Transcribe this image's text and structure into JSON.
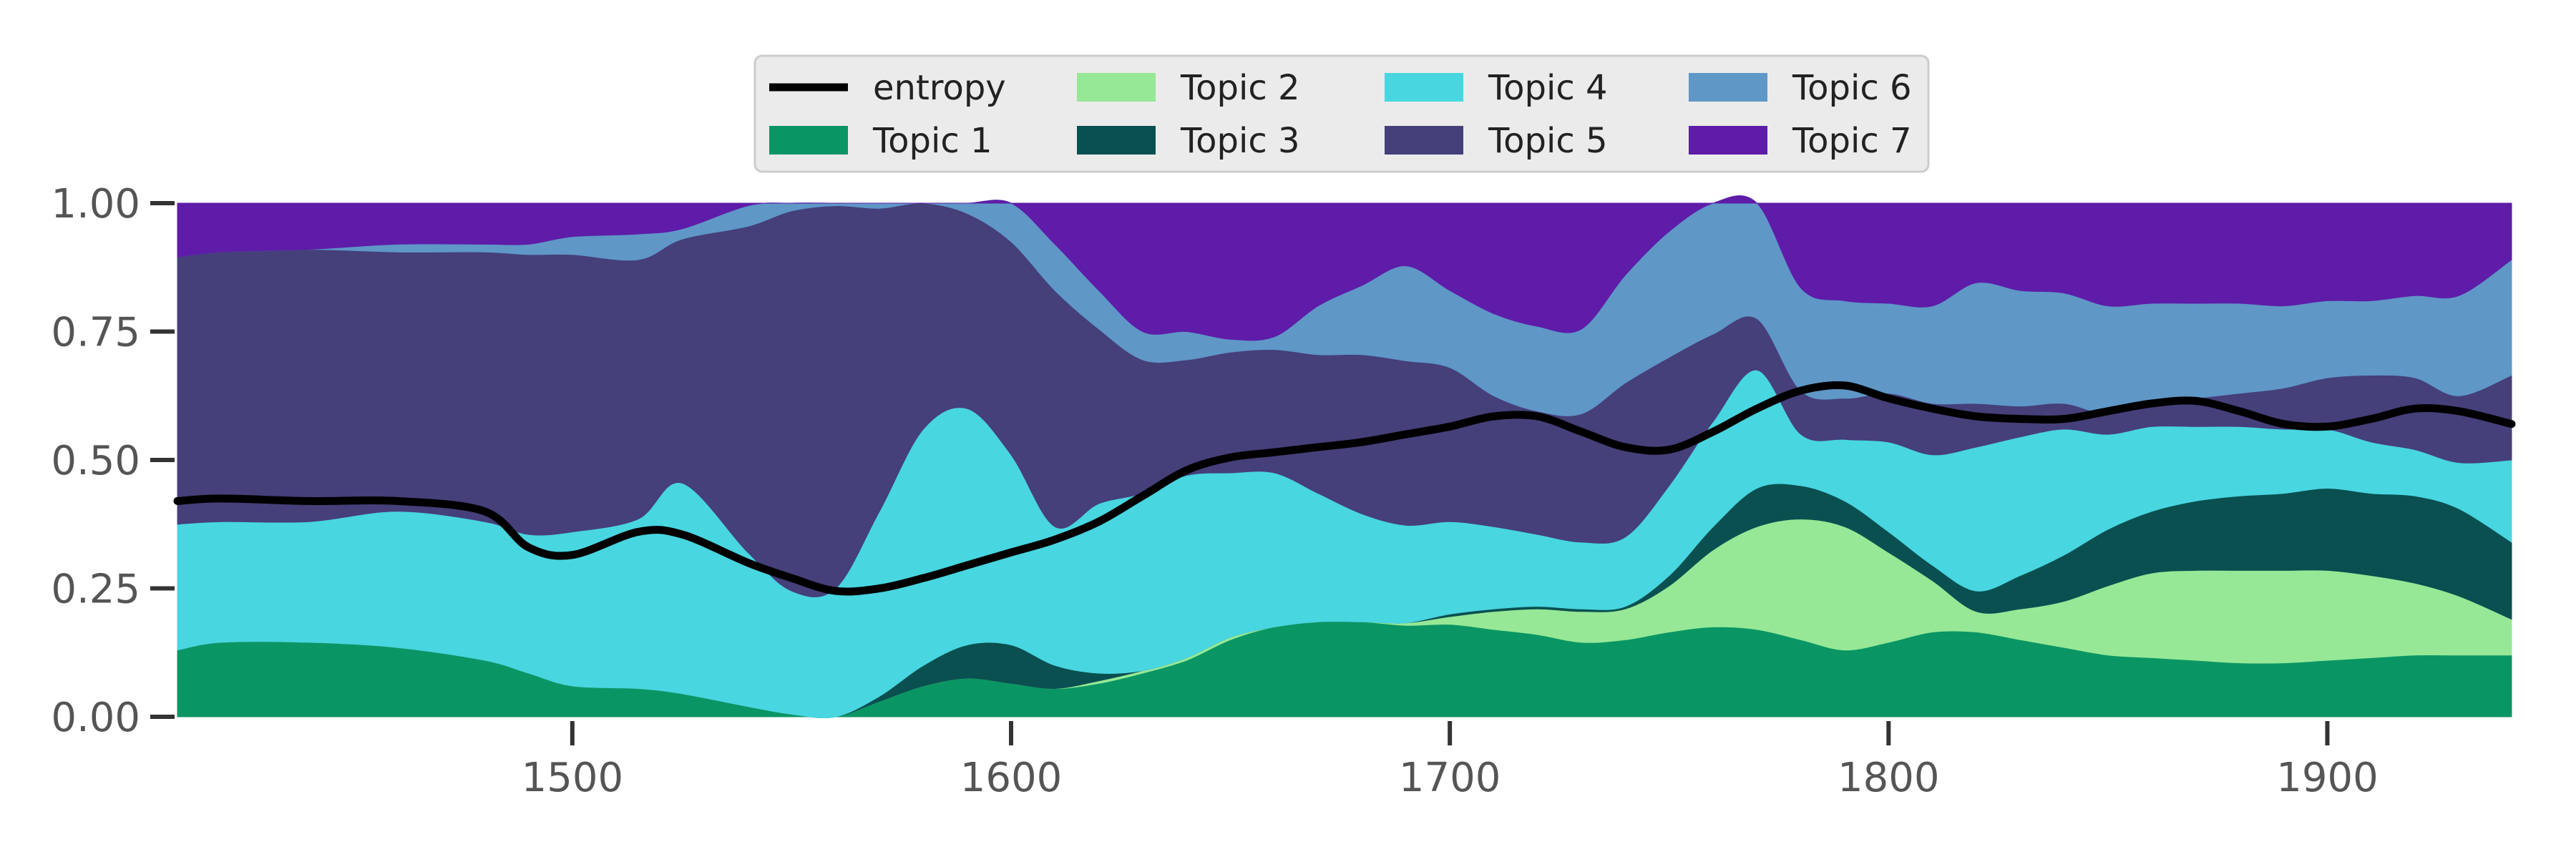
{
  "chart_data": {
    "type": "area",
    "stacked": true,
    "title": "",
    "xlabel": "",
    "ylabel": "",
    "xlim": [
      1410,
      1942
    ],
    "ylim": [
      0,
      1
    ],
    "grid": false,
    "legend_placement": "top-center",
    "x_ticks": [
      "1500",
      "1600",
      "1700",
      "1800",
      "1900"
    ],
    "y_ticks": [
      "0.00",
      "0.25",
      "0.50",
      "0.75",
      "1.00"
    ],
    "x": [
      1410,
      1420,
      1440,
      1460,
      1480,
      1490,
      1500,
      1515,
      1525,
      1540,
      1550,
      1560,
      1570,
      1580,
      1590,
      1600,
      1610,
      1620,
      1630,
      1640,
      1650,
      1660,
      1670,
      1680,
      1690,
      1700,
      1710,
      1720,
      1730,
      1740,
      1750,
      1760,
      1770,
      1780,
      1790,
      1800,
      1810,
      1820,
      1830,
      1840,
      1850,
      1860,
      1870,
      1880,
      1890,
      1900,
      1910,
      1920,
      1930,
      1942
    ],
    "series": [
      {
        "name": "Topic 1",
        "color": "#0a9664",
        "values": [
          0.13,
          0.145,
          0.145,
          0.135,
          0.11,
          0.085,
          0.06,
          0.055,
          0.045,
          0.02,
          0.005,
          0.0,
          0.03,
          0.06,
          0.075,
          0.065,
          0.055,
          0.065,
          0.085,
          0.11,
          0.15,
          0.175,
          0.185,
          0.185,
          0.178,
          0.18,
          0.17,
          0.16,
          0.145,
          0.15,
          0.165,
          0.175,
          0.17,
          0.15,
          0.13,
          0.145,
          0.165,
          0.165,
          0.15,
          0.135,
          0.12,
          0.115,
          0.11,
          0.105,
          0.105,
          0.11,
          0.115,
          0.12,
          0.12,
          0.12
        ]
      },
      {
        "name": "Topic 2",
        "color": "#96e896",
        "values": [
          0.0,
          0.0,
          0.0,
          0.0,
          0.0,
          0.0,
          0.0,
          0.0,
          0.0,
          0.0,
          0.0,
          0.0,
          0.0,
          0.0,
          0.0,
          0.0,
          0.0,
          0.005,
          0.005,
          0.005,
          0.005,
          0.0,
          0.0,
          0.0,
          0.005,
          0.015,
          0.035,
          0.05,
          0.06,
          0.06,
          0.09,
          0.15,
          0.2,
          0.235,
          0.24,
          0.175,
          0.1,
          0.04,
          0.06,
          0.09,
          0.135,
          0.165,
          0.175,
          0.18,
          0.18,
          0.175,
          0.16,
          0.14,
          0.115,
          0.07
        ]
      },
      {
        "name": "Topic 3",
        "color": "#0a5050",
        "values": [
          0.0,
          0.0,
          0.0,
          0.0,
          0.0,
          0.0,
          0.0,
          0.0,
          0.0,
          0.0,
          0.0,
          0.0,
          0.01,
          0.04,
          0.065,
          0.075,
          0.045,
          0.015,
          0.0,
          0.0,
          0.0,
          0.0,
          0.0,
          0.0,
          0.0,
          0.005,
          0.005,
          0.005,
          0.005,
          0.005,
          0.02,
          0.045,
          0.075,
          0.065,
          0.05,
          0.04,
          0.03,
          0.04,
          0.065,
          0.09,
          0.11,
          0.12,
          0.135,
          0.145,
          0.15,
          0.16,
          0.16,
          0.17,
          0.17,
          0.15
        ]
      },
      {
        "name": "Topic 4",
        "color": "#48d6e0",
        "values": [
          0.245,
          0.235,
          0.235,
          0.265,
          0.27,
          0.27,
          0.3,
          0.33,
          0.41,
          0.3,
          0.24,
          0.25,
          0.36,
          0.46,
          0.46,
          0.37,
          0.27,
          0.33,
          0.345,
          0.355,
          0.32,
          0.3,
          0.25,
          0.21,
          0.19,
          0.18,
          0.16,
          0.14,
          0.13,
          0.135,
          0.175,
          0.205,
          0.23,
          0.1,
          0.12,
          0.175,
          0.215,
          0.28,
          0.27,
          0.245,
          0.185,
          0.165,
          0.145,
          0.135,
          0.125,
          0.115,
          0.1,
          0.09,
          0.09,
          0.16
        ]
      },
      {
        "name": "Topic 5",
        "color": "#453f7a",
        "values": [
          0.52,
          0.525,
          0.53,
          0.505,
          0.525,
          0.545,
          0.54,
          0.505,
          0.475,
          0.635,
          0.74,
          0.745,
          0.59,
          0.44,
          0.38,
          0.415,
          0.46,
          0.34,
          0.26,
          0.225,
          0.235,
          0.24,
          0.27,
          0.31,
          0.32,
          0.3,
          0.255,
          0.24,
          0.25,
          0.3,
          0.25,
          0.17,
          0.1,
          0.085,
          0.08,
          0.095,
          0.1,
          0.085,
          0.06,
          0.05,
          0.04,
          0.045,
          0.055,
          0.065,
          0.08,
          0.1,
          0.13,
          0.14,
          0.13,
          0.165
        ]
      },
      {
        "name": "Topic 6",
        "color": "#5f97c7",
        "values": [
          0.0,
          0.0,
          0.0,
          0.015,
          0.015,
          0.02,
          0.035,
          0.05,
          0.02,
          0.04,
          0.03,
          0.01,
          0.01,
          0.005,
          0.045,
          0.075,
          0.09,
          0.075,
          0.055,
          0.055,
          0.025,
          0.025,
          0.095,
          0.135,
          0.185,
          0.15,
          0.16,
          0.165,
          0.165,
          0.21,
          0.245,
          0.255,
          0.235,
          0.2,
          0.19,
          0.175,
          0.19,
          0.235,
          0.225,
          0.215,
          0.21,
          0.195,
          0.185,
          0.175,
          0.16,
          0.15,
          0.145,
          0.16,
          0.195,
          0.225
        ]
      },
      {
        "name": "Topic 7",
        "color": "#5e1ca8",
        "values": [
          0.105,
          0.095,
          0.09,
          0.08,
          0.08,
          0.08,
          0.065,
          0.06,
          0.05,
          0.005,
          0.005,
          0.005,
          0.0,
          0.0,
          0.0,
          0.0,
          0.08,
          0.17,
          0.245,
          0.255,
          0.265,
          0.26,
          0.2,
          0.16,
          0.122,
          0.17,
          0.215,
          0.24,
          0.245,
          0.14,
          0.105,
          0.0,
          0.0,
          0.0,
          0.0,
          0.0,
          0.0,
          0.0,
          0.0,
          0.0,
          0.0,
          0.0,
          0.0,
          0.0,
          0.0,
          0.0,
          0.0,
          0.0,
          0.0,
          0.0
        ],
        "note_renormalize": true
      }
    ],
    "line_series": {
      "name": "entropy",
      "color": "#000000",
      "values": [
        0.42,
        0.425,
        0.42,
        0.42,
        0.4,
        0.33,
        0.315,
        0.36,
        0.355,
        0.3,
        0.27,
        0.245,
        0.25,
        0.27,
        0.295,
        0.32,
        0.345,
        0.38,
        0.43,
        0.48,
        0.505,
        0.515,
        0.525,
        0.535,
        0.55,
        0.565,
        0.585,
        0.585,
        0.555,
        0.525,
        0.52,
        0.555,
        0.6,
        0.635,
        0.645,
        0.62,
        0.6,
        0.585,
        0.58,
        0.58,
        0.595,
        0.61,
        0.615,
        0.595,
        0.57,
        0.565,
        0.58,
        0.6,
        0.595,
        0.57
      ]
    },
    "legend": [
      "entropy",
      "Topic 1",
      "Topic 2",
      "Topic 3",
      "Topic 4",
      "Topic 5",
      "Topic 6",
      "Topic 7"
    ]
  }
}
